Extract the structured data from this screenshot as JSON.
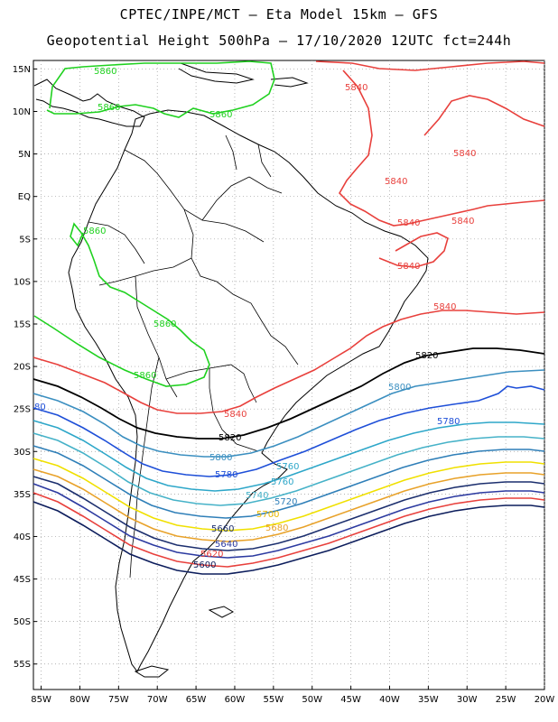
{
  "title_line1": "CPTEC/INPE/MCT –  Eta Model 15km – GFS",
  "title_line2": "Geopotential Height 500hPa – 17/10/2020 12UTC fct=244h",
  "map": {
    "lon_range": [
      -86,
      -20
    ],
    "lat_range": [
      -58,
      16
    ],
    "lat_labels": [
      "15N",
      "10N",
      "5N",
      "EQ",
      "5S",
      "10S",
      "15S",
      "20S",
      "25S",
      "30S",
      "35S",
      "40S",
      "45S",
      "50S",
      "55S"
    ],
    "lon_labels": [
      "85W",
      "80W",
      "75W",
      "70W",
      "65W",
      "60W",
      "55W",
      "50W",
      "45W",
      "40W",
      "35W",
      "30W",
      "25W",
      "20W"
    ],
    "grid": true
  },
  "contours": [
    {
      "value": "5860",
      "color": "#1fd11f",
      "labels": [
        "5860",
        "5860",
        "5860",
        "5860",
        "5860",
        "5860"
      ]
    },
    {
      "value": "5840",
      "color": "#e8403c",
      "labels": [
        "5840",
        "5840",
        "5840",
        "5840",
        "5840",
        "5840",
        "5840",
        "5840"
      ]
    },
    {
      "value": "5820",
      "color": "#000000",
      "labels": [
        "5820",
        "5820"
      ]
    },
    {
      "value": "5800",
      "color": "#3b8fc0",
      "labels": [
        "5800",
        "5800"
      ]
    },
    {
      "value": "5780",
      "color": "#1e4fd8",
      "labels": [
        "5780",
        "5780",
        "80"
      ]
    },
    {
      "value": "5760",
      "color": "#2ea7c9",
      "labels": [
        "5760",
        "5760"
      ]
    },
    {
      "value": "5740",
      "color": "#46b2c8",
      "labels": [
        "5740"
      ]
    },
    {
      "value": "5720",
      "color": "#2f7fb8",
      "labels": [
        "5720"
      ]
    },
    {
      "value": "5700",
      "color": "#f0e000",
      "labels": [
        "5700"
      ]
    },
    {
      "value": "5680",
      "color": "#e8a22a",
      "labels": [
        "5680"
      ]
    },
    {
      "value": "5660",
      "color": "#1c2f6e",
      "labels": [
        "5660"
      ]
    },
    {
      "value": "5640",
      "color": "#2c3aa0",
      "labels": [
        "5640"
      ]
    },
    {
      "value": "5620",
      "color": "#e8403c",
      "labels": [
        "5620"
      ]
    },
    {
      "value": "5600",
      "color": "#0c1d5c",
      "labels": [
        "5600"
      ]
    }
  ]
}
